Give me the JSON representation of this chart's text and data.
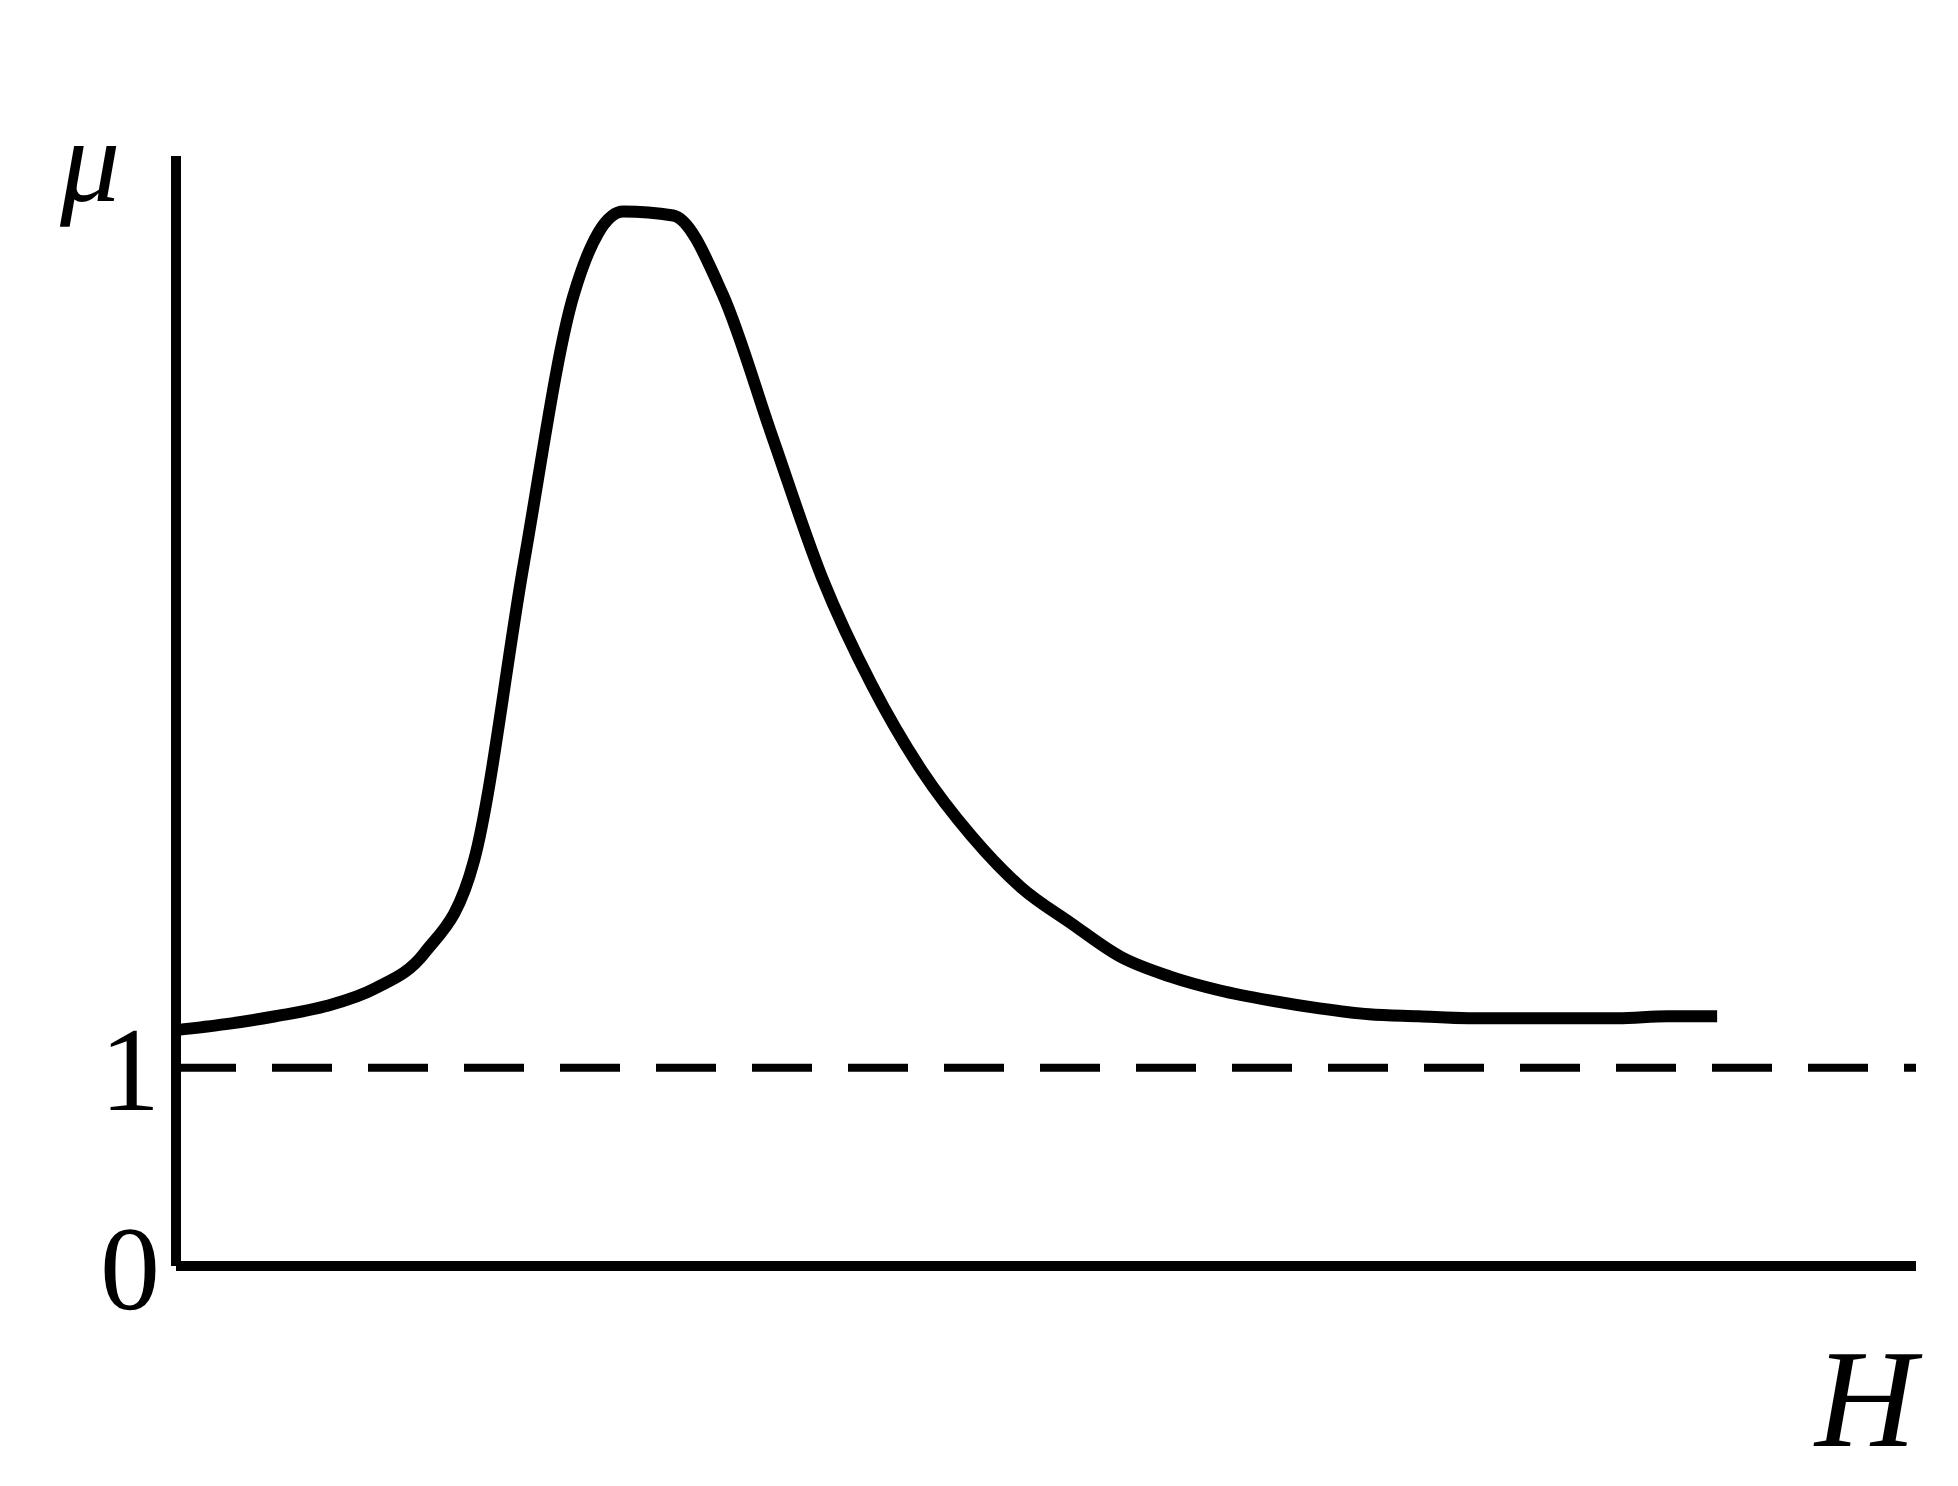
{
  "chart_data": {
    "type": "line",
    "xlabel": "H",
    "ylabel": "μ",
    "categories": [
      null,
      null,
      null,
      null,
      null,
      null,
      null,
      null,
      null,
      null,
      null,
      null,
      null,
      null,
      null,
      null,
      null,
      null,
      null,
      null,
      null,
      null,
      null,
      null,
      null,
      null,
      null,
      null,
      null,
      null,
      null,
      null,
      null,
      null,
      null,
      null
    ],
    "series": [
      {
        "color": "#000000",
        "values": [
          1.19,
          1.22,
          1.26,
          1.31,
          1.4,
          1.58,
          2.05,
          3.55,
          4.9,
          5.32,
          5.3,
          4.9,
          4.18,
          3.47,
          2.93,
          2.5,
          2.17,
          1.91,
          1.73,
          1.56,
          1.46,
          1.39,
          1.34,
          1.3,
          1.27,
          1.26,
          1.25,
          1.25,
          1.25,
          1.25,
          1.26,
          1.26,
          null,
          null,
          null,
          null
        ]
      }
    ],
    "ylim": [
      0,
      5.6
    ],
    "yticks": [
      0,
      1
    ],
    "tick_labels": "y",
    "grid": false,
    "legend": false,
    "marker": "none",
    "line_style": "solid",
    "ref_lines": [
      {
        "axis": "y",
        "value": 1,
        "line_style": "dashed",
        "color": "#000000"
      }
    ]
  }
}
